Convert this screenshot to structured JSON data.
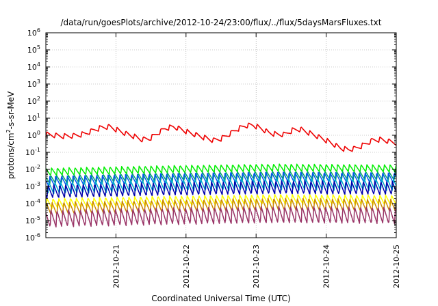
{
  "chart_data": {
    "type": "line",
    "title": "/data/run/goesPlots/archive/2012-10-24/23:00/flux/../flux/5daysMarsFluxes.txt",
    "xlabel": "Coordinated Universal Time (UTC)",
    "ylabel": {
      "prefix": "protons/cm",
      "sup": "2",
      "suffix": "-s-sr-MeV"
    },
    "x_range": [
      "2012-10-20",
      "2012-10-25"
    ],
    "x_ticks": [
      "2012-10-21",
      "2012-10-22",
      "2012-10-23",
      "2012-10-24",
      "2012-10-25"
    ],
    "y_scale": "log",
    "ylim": [
      1e-06,
      1000000.0
    ],
    "y_ticks": [
      {
        "base": "10",
        "exp": "-6",
        "value": 1e-06
      },
      {
        "base": "10",
        "exp": "-5",
        "value": 1e-05
      },
      {
        "base": "10",
        "exp": "-4",
        "value": 0.0001
      },
      {
        "base": "10",
        "exp": "-3",
        "value": 0.001
      },
      {
        "base": "10",
        "exp": "-2",
        "value": 0.01
      },
      {
        "base": "10",
        "exp": "-1",
        "value": 0.1
      },
      {
        "base": "10",
        "exp": "0",
        "value": 1
      },
      {
        "base": "10",
        "exp": "1",
        "value": 10
      },
      {
        "base": "10",
        "exp": "2",
        "value": 100
      },
      {
        "base": "10",
        "exp": "3",
        "value": 1000
      },
      {
        "base": "10",
        "exp": "4",
        "value": 10000
      },
      {
        "base": "10",
        "exp": "5",
        "value": 100000
      },
      {
        "base": "10",
        "exp": "6",
        "value": 1000000
      }
    ],
    "grid": true,
    "legend": "none",
    "series_colors": [
      "#ee0000",
      "#00ee00",
      "#00aa66",
      "#0055ee",
      "#00aacc",
      "#0000aa",
      "#ffff00",
      "#cc8800",
      "#993366"
    ],
    "series": [
      {
        "color": "#ee0000",
        "base_log10_values": [
          0.05,
          0.0,
          -0.05,
          -0.05,
          0.0,
          0.1,
          0.3,
          0.45,
          0.5,
          0.3,
          0.1,
          -0.05,
          -0.25,
          -0.2,
          0.1,
          0.4,
          0.5,
          0.35,
          0.15,
          0.0,
          -0.15,
          -0.3,
          -0.2,
          0.05,
          0.35,
          0.55,
          0.6,
          0.4,
          0.15,
          0.05,
          0.05,
          0.3,
          0.35,
          0.15,
          -0.05,
          -0.25,
          -0.5,
          -0.75,
          -0.85,
          -0.75,
          -0.55,
          -0.3,
          -0.25,
          -0.35,
          -0.45
        ],
        "sawtooth_rise_dex": 0.3
      },
      {
        "color": "#00ee00",
        "base_log10_values": [
          -2.15,
          -2.0,
          -1.9,
          -1.95
        ],
        "sawtooth_rise_dex": 0.45
      },
      {
        "color": "#00aa66",
        "base_log10_values": [
          -2.6,
          -2.45,
          -2.35,
          -2.4
        ],
        "sawtooth_rise_dex": 0.5
      },
      {
        "color": "#0055ee",
        "base_log10_values": [
          -2.7,
          -2.55,
          -2.45,
          -2.5
        ],
        "sawtooth_rise_dex": 0.6
      },
      {
        "color": "#00aacc",
        "base_log10_values": [
          -3.1,
          -2.95,
          -2.85,
          -2.9
        ],
        "sawtooth_rise_dex": 0.7
      },
      {
        "color": "#0000aa",
        "base_log10_values": [
          -3.3,
          -3.15,
          -3.05,
          -3.1
        ],
        "sawtooth_rise_dex": 0.8
      },
      {
        "color": "#ffff00",
        "base_log10_values": [
          -4.0,
          -3.85,
          -3.75,
          -3.8
        ],
        "sawtooth_rise_dex": 0.6
      },
      {
        "color": "#cc8800",
        "base_log10_values": [
          -4.3,
          -4.15,
          -4.05,
          -4.1
        ],
        "sawtooth_rise_dex": 0.75
      },
      {
        "color": "#993366",
        "base_log10_values": [
          -4.9,
          -4.75,
          -4.65,
          -4.7
        ],
        "sawtooth_rise_dex": 1.0
      }
    ]
  }
}
